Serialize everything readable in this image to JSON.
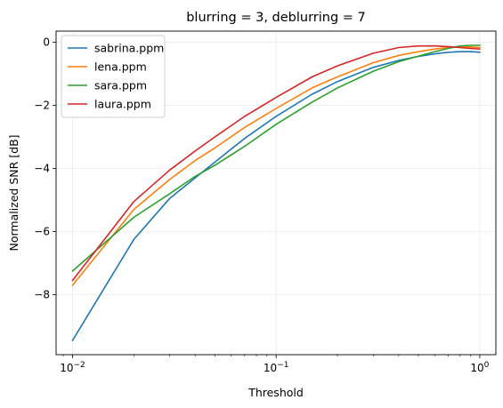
{
  "chart_data": {
    "type": "line",
    "title": "blurring = 3, deblurring = 7",
    "xlabel": "Threshold",
    "ylabel": "Normalized SNR [dB]",
    "x_scale": "log",
    "xlim": [
      0.0083,
      1.2
    ],
    "ylim": [
      -9.9,
      0.35
    ],
    "grid": true,
    "legend_position": "top-left",
    "x_ticks": [
      {
        "value": 0.01,
        "base": "10",
        "exp": "−2"
      },
      {
        "value": 0.1,
        "base": "10",
        "exp": "−1"
      },
      {
        "value": 1,
        "base": "10",
        "exp": "0"
      }
    ],
    "y_ticks": [
      {
        "value": 0,
        "label": "0"
      },
      {
        "value": -2,
        "label": "−2"
      },
      {
        "value": -4,
        "label": "−4"
      },
      {
        "value": -6,
        "label": "−6"
      },
      {
        "value": -8,
        "label": "−8"
      }
    ],
    "x": [
      0.01,
      0.02,
      0.03,
      0.04,
      0.05,
      0.07,
      0.1,
      0.15,
      0.2,
      0.3,
      0.4,
      0.5,
      0.6,
      0.7,
      0.8,
      0.9,
      1.0
    ],
    "series": [
      {
        "name": "sabrina.ppm",
        "color": "#1f77b4",
        "values": [
          -9.45,
          -6.25,
          -4.95,
          -4.3,
          -3.8,
          -3.05,
          -2.35,
          -1.65,
          -1.25,
          -0.8,
          -0.58,
          -0.45,
          -0.37,
          -0.32,
          -0.3,
          -0.3,
          -0.32
        ]
      },
      {
        "name": "lena.ppm",
        "color": "#ff7f0e",
        "values": [
          -7.7,
          -5.3,
          -4.35,
          -3.75,
          -3.35,
          -2.7,
          -2.1,
          -1.45,
          -1.1,
          -0.65,
          -0.42,
          -0.3,
          -0.22,
          -0.17,
          -0.15,
          -0.15,
          -0.17
        ]
      },
      {
        "name": "sara.ppm",
        "color": "#2ca02c",
        "values": [
          -7.25,
          -5.55,
          -4.8,
          -4.25,
          -3.9,
          -3.3,
          -2.6,
          -1.9,
          -1.45,
          -0.92,
          -0.62,
          -0.44,
          -0.3,
          -0.2,
          -0.12,
          -0.1,
          -0.1
        ]
      },
      {
        "name": "laura.ppm",
        "color": "#d62728",
        "values": [
          -7.55,
          -5.05,
          -4.05,
          -3.45,
          -3.0,
          -2.35,
          -1.75,
          -1.1,
          -0.75,
          -0.35,
          -0.17,
          -0.12,
          -0.12,
          -0.14,
          -0.17,
          -0.2,
          -0.22
        ]
      }
    ]
  }
}
